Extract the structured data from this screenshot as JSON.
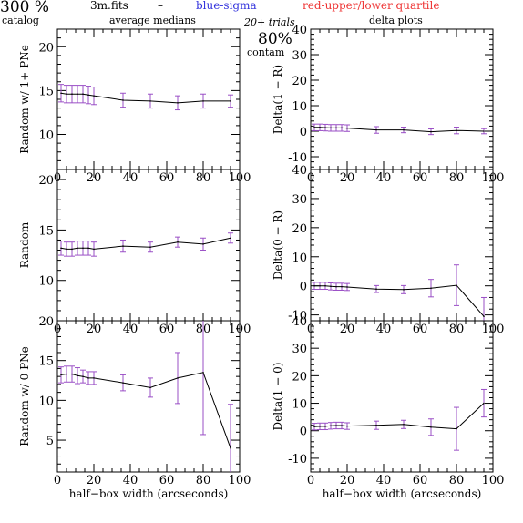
{
  "header": {
    "count": "300 %",
    "catalog": "catalog",
    "filename": "3m.fits",
    "dash": "–",
    "blue_label": "blue-sigma",
    "red_label": "red-upper/lower quartile",
    "left_title": "average medians",
    "trials": "20+ trials",
    "contam_pct": "80%",
    "contam": "contam",
    "right_title": "delta plots"
  },
  "colors": {
    "line": "#000000",
    "error_bars": "#9a4fc6",
    "sigma": "#3333dd",
    "quartile": "#ee3333"
  },
  "chart_data": [
    {
      "type": "line",
      "id": "ul",
      "ylabel": "Random w/ 1+ PNe",
      "xlabel": "",
      "xlim": [
        0,
        100
      ],
      "ylim": [
        6,
        22
      ],
      "xticks": [
        0,
        20,
        40,
        60,
        80,
        100
      ],
      "yticks": [
        10,
        15,
        20
      ],
      "x": [
        2,
        5,
        8,
        11,
        14,
        17,
        20,
        36,
        51,
        66,
        80,
        95
      ],
      "y": [
        14.7,
        14.6,
        14.6,
        14.6,
        14.6,
        14.5,
        14.4,
        13.9,
        13.8,
        13.6,
        13.8,
        13.8
      ],
      "err": [
        1.0,
        1.0,
        1.0,
        1.0,
        1.0,
        1.0,
        1.0,
        0.8,
        0.8,
        0.8,
        0.8,
        0.7
      ]
    },
    {
      "type": "line",
      "id": "ur",
      "ylabel": "Delta(1 − R)",
      "xlabel": "",
      "xlim": [
        0,
        100
      ],
      "ylim": [
        -15,
        40
      ],
      "xticks": [
        0,
        20,
        40,
        60,
        80,
        100
      ],
      "yticks": [
        -10,
        0,
        10,
        20,
        30,
        40
      ],
      "x": [
        2,
        5,
        8,
        11,
        14,
        17,
        20,
        36,
        51,
        66,
        80,
        95
      ],
      "y": [
        1.5,
        1.5,
        1.4,
        1.3,
        1.3,
        1.3,
        1.2,
        0.5,
        0.5,
        -0.2,
        0.3,
        0.0
      ],
      "err": [
        1.3,
        1.3,
        1.3,
        1.3,
        1.3,
        1.3,
        1.3,
        1.3,
        1.1,
        1.1,
        1.3,
        1.0
      ]
    },
    {
      "type": "line",
      "id": "ml",
      "ylabel": "Random",
      "xlabel": "",
      "xlim": [
        0,
        100
      ],
      "ylim": [
        6,
        21
      ],
      "xticks": [
        0,
        20,
        40,
        60,
        80,
        100
      ],
      "yticks": [
        10,
        15,
        20
      ],
      "x": [
        2,
        5,
        8,
        11,
        14,
        17,
        20,
        36,
        51,
        66,
        80,
        95
      ],
      "y": [
        13.2,
        13.1,
        13.1,
        13.2,
        13.2,
        13.2,
        13.1,
        13.4,
        13.3,
        13.8,
        13.6,
        14.2
      ],
      "err": [
        0.7,
        0.7,
        0.7,
        0.7,
        0.7,
        0.7,
        0.7,
        0.6,
        0.5,
        0.5,
        0.6,
        0.5
      ]
    },
    {
      "type": "line",
      "id": "mr",
      "ylabel": "Delta(0 − R)",
      "xlabel": "",
      "xlim": [
        0,
        100
      ],
      "ylim": [
        -12,
        40
      ],
      "xticks": [
        0,
        20,
        40,
        60,
        80,
        100
      ],
      "yticks": [
        -10,
        0,
        10,
        20,
        30,
        40
      ],
      "x": [
        2,
        5,
        8,
        11,
        14,
        17,
        20,
        36,
        51,
        66,
        80,
        95
      ],
      "y": [
        0.0,
        0.0,
        0.0,
        -0.2,
        -0.3,
        -0.3,
        -0.4,
        -1.1,
        -1.3,
        -0.8,
        0.2,
        -10.5
      ],
      "err": [
        1.2,
        1.2,
        1.2,
        1.2,
        1.2,
        1.2,
        1.2,
        1.2,
        1.4,
        3.0,
        7.0,
        6.5
      ]
    },
    {
      "type": "line",
      "id": "ll",
      "ylabel": "Random w/ 0 PNe",
      "xlabel": "half−box width (arcseconds)",
      "xlim": [
        0,
        100
      ],
      "ylim": [
        1,
        20
      ],
      "xticks": [
        0,
        20,
        40,
        60,
        80,
        100
      ],
      "yticks": [
        5,
        10,
        15,
        20
      ],
      "x": [
        2,
        5,
        8,
        11,
        14,
        17,
        20,
        36,
        51,
        66,
        80,
        95
      ],
      "y": [
        13.2,
        13.3,
        13.3,
        13.1,
        13.0,
        12.8,
        12.8,
        12.2,
        11.6,
        12.8,
        13.5,
        4.0
      ],
      "err": [
        1.0,
        1.0,
        1.0,
        1.0,
        0.8,
        0.8,
        0.8,
        1.0,
        1.2,
        3.2,
        7.8,
        5.5
      ]
    },
    {
      "type": "line",
      "id": "lr",
      "ylabel": "Delta(1 − 0)",
      "xlabel": "half−box width (arcseconds)",
      "xlim": [
        0,
        100
      ],
      "ylim": [
        -15,
        40
      ],
      "xticks": [
        0,
        20,
        40,
        60,
        80,
        100
      ],
      "yticks": [
        -10,
        0,
        10,
        20,
        30,
        40
      ],
      "x": [
        2,
        5,
        8,
        11,
        14,
        17,
        20,
        36,
        51,
        66,
        80,
        95
      ],
      "y": [
        1.5,
        1.6,
        1.6,
        1.8,
        1.9,
        1.9,
        1.7,
        2.0,
        2.3,
        1.3,
        0.7,
        10.0
      ],
      "err": [
        1.2,
        1.2,
        1.2,
        1.2,
        1.2,
        1.2,
        1.2,
        1.5,
        1.5,
        3.0,
        7.8,
        5.0
      ]
    }
  ]
}
